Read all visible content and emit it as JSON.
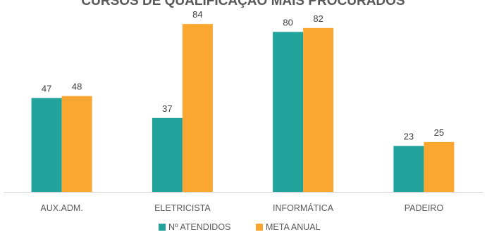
{
  "chart_data": {
    "type": "bar",
    "title": "CURSOS DE QUALIFICAÇÃO MAIS PROCURADOS",
    "categories": [
      "AUX.ADM.",
      "ELETRICISTA",
      "INFORMÁTICA",
      "PADEIRO"
    ],
    "series": [
      {
        "name": "Nº ATENDIDOS",
        "color": "#21A39C",
        "values": [
          47,
          37,
          80,
          23
        ]
      },
      {
        "name": "META ANUAL",
        "color": "#FAA732",
        "values": [
          48,
          84,
          82,
          25
        ]
      }
    ],
    "ylim": [
      0,
      90
    ],
    "grid": false,
    "legend": "bottom"
  }
}
